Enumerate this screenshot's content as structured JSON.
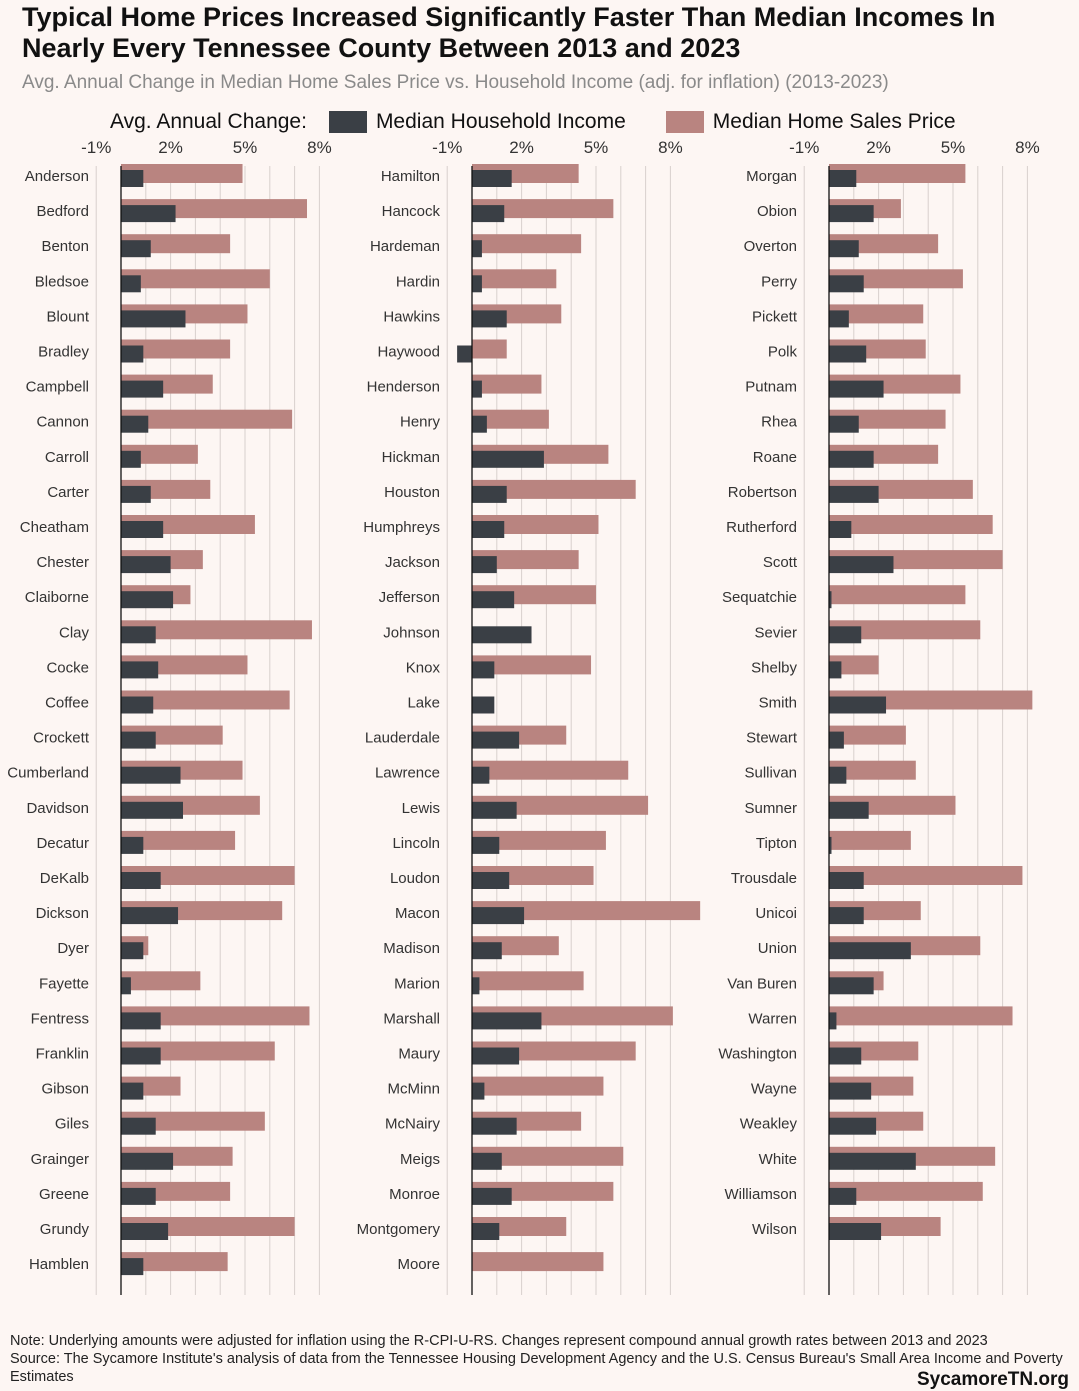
{
  "title": "Typical Home Prices Increased Significantly Faster Than Median Incomes In Nearly Every Tennessee County Between 2013 and 2023",
  "subtitle": "Avg. Annual Change in Median Home Sales Price vs. Household Income (adj. for inflation) (2013-2023)",
  "legend": {
    "title": "Avg. Annual Change:",
    "income_label": "Median Household Income",
    "price_label": "Median Home Sales Price"
  },
  "colors": {
    "income": "#3a3f45",
    "price": "#b98480",
    "grid": "#d8d0cd",
    "axis": "#111111"
  },
  "note": "Note: Underlying amounts were adjusted for inflation using the R-CPI-U-RS. Changes represent compound annual growth rates between 2013 and 2023",
  "source": "Source: The Sycamore Institute's analysis of data from the Tennessee Housing Development Agency and the U.S. Census Bureau's Small Area Income and Poverty Estimates",
  "brand": "SycamoreTN.org",
  "chart_data": {
    "type": "bar",
    "orientation": "horizontal",
    "overlapping": true,
    "xlim": [
      -1,
      8.5
    ],
    "ticks": [
      -1,
      2,
      5,
      8
    ],
    "tick_labels": [
      "-1%",
      "2%",
      "5%",
      "8%"
    ],
    "grid": true,
    "legend_position": "top",
    "series_names": [
      "Median Household Income",
      "Median Home Sales Price"
    ],
    "panels": [
      {
        "counties": [
          "Anderson",
          "Bedford",
          "Benton",
          "Bledsoe",
          "Blount",
          "Bradley",
          "Campbell",
          "Cannon",
          "Carroll",
          "Carter",
          "Cheatham",
          "Chester",
          "Claiborne",
          "Clay",
          "Cocke",
          "Coffee",
          "Crockett",
          "Cumberland",
          "Davidson",
          "Decatur",
          "DeKalb",
          "Dickson",
          "Dyer",
          "Fayette",
          "Fentress",
          "Franklin",
          "Gibson",
          "Giles",
          "Grainger",
          "Greene",
          "Grundy",
          "Hamblen"
        ],
        "income": [
          0.9,
          2.2,
          1.2,
          0.8,
          2.6,
          0.9,
          1.7,
          1.1,
          0.8,
          1.2,
          1.7,
          2.0,
          2.1,
          1.4,
          1.5,
          1.3,
          1.4,
          2.4,
          2.5,
          0.9,
          1.6,
          2.3,
          0.9,
          0.4,
          1.6,
          1.6,
          0.9,
          1.4,
          2.1,
          1.4,
          1.9,
          0.9
        ],
        "price": [
          4.9,
          7.5,
          4.4,
          6.0,
          5.1,
          4.4,
          3.7,
          6.9,
          3.1,
          3.6,
          5.4,
          3.3,
          2.8,
          7.7,
          5.1,
          6.8,
          4.1,
          4.9,
          5.6,
          4.6,
          7.0,
          6.5,
          1.1,
          3.2,
          7.6,
          6.2,
          2.4,
          5.8,
          4.5,
          4.4,
          7.0,
          4.3
        ]
      },
      {
        "counties": [
          "Hamilton",
          "Hancock",
          "Hardeman",
          "Hardin",
          "Hawkins",
          "Haywood",
          "Henderson",
          "Henry",
          "Hickman",
          "Houston",
          "Humphreys",
          "Jackson",
          "Jefferson",
          "Johnson",
          "Knox",
          "Lake",
          "Lauderdale",
          "Lawrence",
          "Lewis",
          "Lincoln",
          "Loudon",
          "Macon",
          "Madison",
          "Marion",
          "Marshall",
          "Maury",
          "McMinn",
          "McNairy",
          "Meigs",
          "Monroe",
          "Montgomery",
          "Moore"
        ],
        "income": [
          1.6,
          1.3,
          0.4,
          0.4,
          1.4,
          -0.6,
          0.4,
          0.6,
          2.9,
          1.4,
          1.3,
          1.0,
          1.7,
          2.4,
          0.9,
          0.9,
          1.9,
          0.7,
          1.8,
          1.1,
          1.5,
          2.1,
          1.2,
          0.3,
          2.8,
          1.9,
          0.5,
          1.8,
          1.2,
          1.6,
          1.1,
          0.0
        ],
        "price": [
          4.3,
          5.7,
          4.4,
          3.4,
          3.6,
          1.4,
          2.8,
          3.1,
          5.5,
          6.6,
          5.1,
          4.3,
          5.0,
          0.0,
          4.8,
          0.0,
          3.8,
          6.3,
          7.1,
          5.4,
          4.9,
          9.2,
          3.5,
          4.5,
          8.1,
          6.6,
          5.3,
          4.4,
          6.1,
          5.7,
          3.8,
          5.3
        ]
      },
      {
        "counties": [
          "Morgan",
          "Obion",
          "Overton",
          "Perry",
          "Pickett",
          "Polk",
          "Putnam",
          "Rhea",
          "Roane",
          "Robertson",
          "Rutherford",
          "Scott",
          "Sequatchie",
          "Sevier",
          "Shelby",
          "Smith",
          "Stewart",
          "Sullivan",
          "Sumner",
          "Tipton",
          "Trousdale",
          "Unicoi",
          "Union",
          "Van Buren",
          "Warren",
          "Washington",
          "Wayne",
          "Weakley",
          "White",
          "Williamson",
          "Wilson"
        ],
        "income": [
          1.1,
          1.8,
          1.2,
          1.4,
          0.8,
          1.5,
          2.2,
          1.2,
          1.8,
          2.0,
          0.9,
          2.6,
          0.1,
          1.3,
          0.5,
          2.3,
          0.6,
          0.7,
          1.6,
          0.1,
          1.4,
          1.4,
          3.3,
          1.8,
          0.3,
          1.3,
          1.7,
          1.9,
          3.5,
          1.1,
          2.1
        ],
        "price": [
          5.5,
          2.9,
          4.4,
          5.4,
          3.8,
          3.9,
          5.3,
          4.7,
          4.4,
          5.8,
          6.6,
          7.0,
          5.5,
          6.1,
          2.0,
          8.2,
          3.1,
          3.5,
          5.1,
          3.3,
          7.8,
          3.7,
          6.1,
          2.2,
          7.4,
          3.6,
          3.4,
          3.8,
          6.7,
          6.2,
          4.5
        ]
      }
    ]
  }
}
